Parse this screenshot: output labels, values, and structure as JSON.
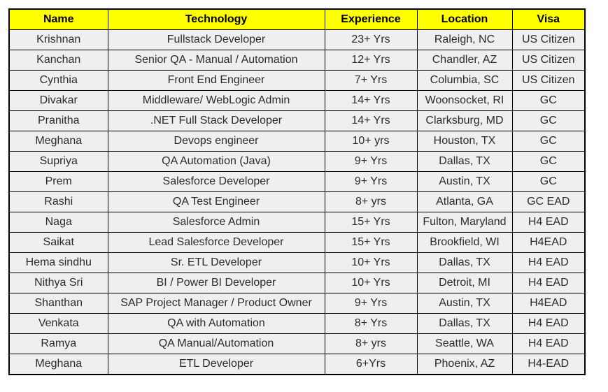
{
  "colors": {
    "header_bg": "#ffff00",
    "row_bg": "#efefef",
    "border": "#000000"
  },
  "table": {
    "columns": [
      "Name",
      "Technology",
      "Experience",
      "Location",
      "Visa"
    ],
    "rows": [
      [
        "Krishnan",
        "Fullstack Developer",
        "23+ Yrs",
        "Raleigh, NC",
        "US Citizen"
      ],
      [
        "Kanchan",
        "Senior QA - Manual / Automation",
        "12+ Yrs",
        "Chandler, AZ",
        "US Citizen"
      ],
      [
        "Cynthia",
        "Front End Engineer",
        "7+ Yrs",
        "Columbia, SC",
        "US Citizen"
      ],
      [
        "Divakar",
        "Middleware/ WebLogic Admin",
        "14+ Yrs",
        "Woonsocket, RI",
        "GC"
      ],
      [
        "Pranitha",
        ".NET Full Stack Developer",
        "14+ Yrs",
        "Clarksburg, MD",
        "GC"
      ],
      [
        "Meghana",
        "Devops engineer",
        "10+ yrs",
        "Houston, TX",
        "GC"
      ],
      [
        "Supriya",
        "QA Automation (Java)",
        "9+ Yrs",
        "Dallas, TX",
        "GC"
      ],
      [
        "Prem",
        "Salesforce Developer",
        "9+ Yrs",
        "Austin, TX",
        "GC"
      ],
      [
        "Rashi",
        "QA Test Engineer",
        "8+ yrs",
        "Atlanta, GA",
        "GC EAD"
      ],
      [
        "Naga",
        "Salesforce Admin",
        "15+ Yrs",
        "Fulton, Maryland",
        "H4 EAD"
      ],
      [
        "Saikat",
        "Lead Salesforce Developer",
        "15+ Yrs",
        "Brookfield, WI",
        "H4EAD"
      ],
      [
        "Hema sindhu",
        "Sr. ETL Developer",
        "10+ Yrs",
        "Dallas, TX",
        "H4 EAD"
      ],
      [
        "Nithya Sri",
        "BI / Power BI Developer",
        "10+ Yrs",
        "Detroit, MI",
        "H4 EAD"
      ],
      [
        "Shanthan",
        "SAP Project Manager / Product Owner",
        "9+ Yrs",
        "Austin, TX",
        "H4EAD"
      ],
      [
        "Venkata",
        "QA with Automation",
        "8+ Yrs",
        "Dallas, TX",
        "H4 EAD"
      ],
      [
        "Ramya",
        "QA Manual/Automation",
        "8+ yrs",
        "Seattle, WA",
        "H4 EAD"
      ],
      [
        "Meghana",
        "ETL Developer",
        "6+Yrs",
        "Phoenix, AZ",
        "H4-EAD"
      ]
    ]
  }
}
